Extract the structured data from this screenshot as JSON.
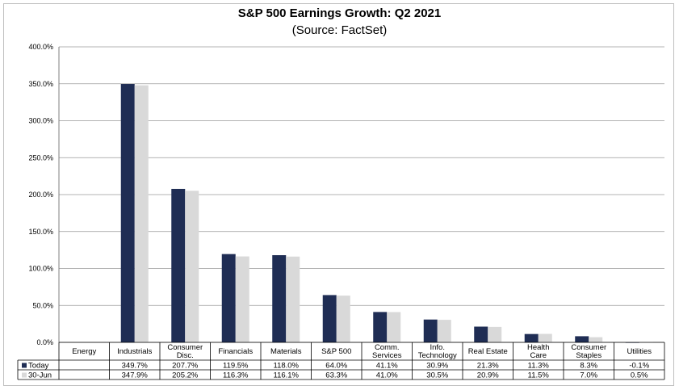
{
  "chart_data": {
    "type": "bar",
    "title": "S&P 500 Earnings Growth: Q2 2021",
    "subtitle": "(Source: FactSet)",
    "categories": [
      [
        "Energy"
      ],
      [
        "Industrials"
      ],
      [
        "Consumer",
        "Disc."
      ],
      [
        "Financials"
      ],
      [
        "Materials"
      ],
      [
        "S&P 500"
      ],
      [
        "Comm.",
        "Services"
      ],
      [
        "Info.",
        "Technology"
      ],
      [
        "Real Estate"
      ],
      [
        "Health",
        "Care"
      ],
      [
        "Consumer",
        "Staples"
      ],
      [
        "Utilities"
      ]
    ],
    "series": [
      {
        "name": "Today",
        "color": "#1f2d54",
        "values": [
          null,
          349.7,
          207.7,
          119.5,
          118.0,
          64.0,
          41.1,
          30.9,
          21.3,
          11.3,
          8.3,
          -0.1
        ],
        "labels": [
          "",
          "349.7%",
          "207.7%",
          "119.5%",
          "118.0%",
          "64.0%",
          "41.1%",
          "30.9%",
          "21.3%",
          "11.3%",
          "8.3%",
          "-0.1%"
        ]
      },
      {
        "name": "30-Jun",
        "color": "#d9d9d9",
        "values": [
          null,
          347.9,
          205.2,
          116.3,
          116.1,
          63.3,
          41.0,
          30.5,
          20.9,
          11.5,
          7.0,
          0.5
        ],
        "labels": [
          "",
          "347.9%",
          "205.2%",
          "116.3%",
          "116.1%",
          "63.3%",
          "41.0%",
          "30.5%",
          "20.9%",
          "11.5%",
          "7.0%",
          "0.5%"
        ]
      }
    ],
    "yticks": [
      "0.0%",
      "50.0%",
      "100.0%",
      "150.0%",
      "200.0%",
      "250.0%",
      "300.0%",
      "350.0%",
      "400.0%"
    ],
    "ylim": [
      0,
      400
    ],
    "grid": true,
    "legend": "data-table"
  }
}
